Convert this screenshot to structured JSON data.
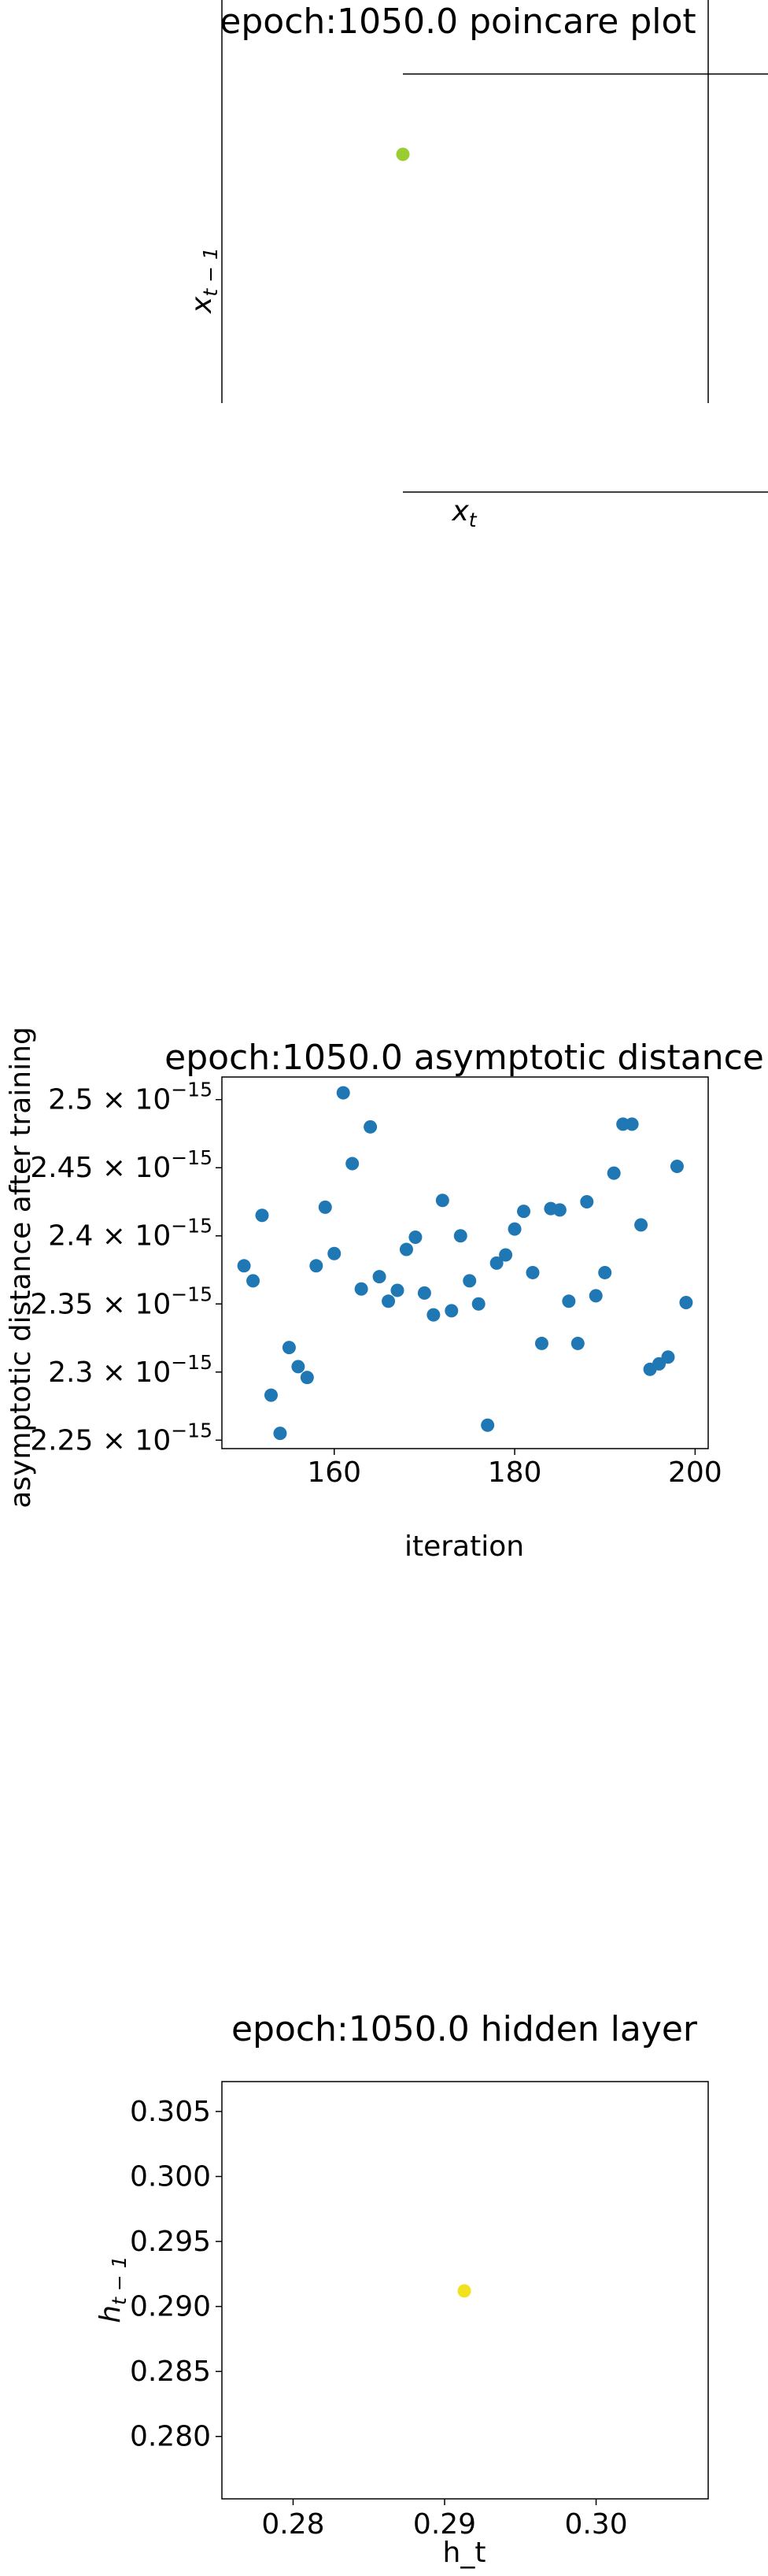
{
  "chart_data": [
    {
      "type": "scatter",
      "title": "epoch:1050.0 poincare plot",
      "xlabel": "x_t",
      "ylabel": "x_{t-1}",
      "axes_style": "spines moved to data position (centered)",
      "x_ticks": [],
      "y_ticks": [],
      "points": [
        {
          "x": 0,
          "y": 0
        }
      ],
      "color": "#9acd32",
      "grid": false
    },
    {
      "type": "scatter",
      "title": "epoch:1050.0 asymptotic distance",
      "xlabel": "iteration",
      "ylabel": "asymptotic distance after training",
      "xlim": [
        147.55,
        201.45
      ],
      "ylim": [
        2.2438e-15,
        2.5166e-15
      ],
      "x_ticks": [
        {
          "value": 160,
          "label": "160"
        },
        {
          "value": 180,
          "label": "180"
        },
        {
          "value": 200,
          "label": "200"
        }
      ],
      "y_ticks": [
        {
          "value": 2.25e-15,
          "mantissa": "2.25",
          "exponent": "-15"
        },
        {
          "value": 2.3e-15,
          "mantissa": "2.3",
          "exponent": "-15"
        },
        {
          "value": 2.35e-15,
          "mantissa": "2.35",
          "exponent": "-15"
        },
        {
          "value": 2.4e-15,
          "mantissa": "2.4",
          "exponent": "-15"
        },
        {
          "value": 2.45e-15,
          "mantissa": "2.45",
          "exponent": "-15"
        },
        {
          "value": 2.5e-15,
          "mantissa": "2.5",
          "exponent": "-15"
        }
      ],
      "x": [
        150,
        151,
        152,
        153,
        154,
        155,
        156,
        157,
        158,
        159,
        160,
        161,
        162,
        163,
        164,
        165,
        166,
        167,
        168,
        169,
        170,
        171,
        172,
        173,
        174,
        175,
        176,
        177,
        178,
        179,
        180,
        181,
        182,
        183,
        184,
        185,
        186,
        187,
        188,
        189,
        190,
        191,
        192,
        193,
        194,
        195,
        196,
        197,
        198,
        199
      ],
      "y": [
        2.378e-15,
        2.367e-15,
        2.415e-15,
        2.283e-15,
        2.255e-15,
        2.318e-15,
        2.304e-15,
        2.296e-15,
        2.378e-15,
        2.421e-15,
        2.387e-15,
        2.505e-15,
        2.453e-15,
        2.361e-15,
        2.48e-15,
        2.37e-15,
        2.352e-15,
        2.36e-15,
        2.39e-15,
        2.399e-15,
        2.358e-15,
        2.342e-15,
        2.426e-15,
        2.345e-15,
        2.4e-15,
        2.367e-15,
        2.35e-15,
        2.261e-15,
        2.38e-15,
        2.386e-15,
        2.405e-15,
        2.418e-15,
        2.373e-15,
        2.321e-15,
        2.42e-15,
        2.419e-15,
        2.352e-15,
        2.321e-15,
        2.425e-15,
        2.356e-15,
        2.373e-15,
        2.446e-15,
        2.482e-15,
        2.482e-15,
        2.408e-15,
        2.302e-15,
        2.306e-15,
        2.311e-15,
        2.451e-15,
        2.351e-15
      ],
      "color": "#1f77b4",
      "grid": false
    },
    {
      "type": "scatter",
      "title": "epoch:1050.0 hidden layer",
      "xlabel": "h_t",
      "ylabel": "h_{t-1}",
      "xlim": [
        0.2753,
        0.3074
      ],
      "ylim": [
        0.2752,
        0.3073
      ],
      "x_ticks": [
        {
          "value": 0.28,
          "label": "0.28"
        },
        {
          "value": 0.29,
          "label": "0.29"
        },
        {
          "value": 0.3,
          "label": "0.30"
        }
      ],
      "y_ticks": [
        {
          "value": 0.28,
          "label": "0.280"
        },
        {
          "value": 0.285,
          "label": "0.285"
        },
        {
          "value": 0.29,
          "label": "0.290"
        },
        {
          "value": 0.295,
          "label": "0.295"
        },
        {
          "value": 0.3,
          "label": "0.300"
        },
        {
          "value": 0.305,
          "label": "0.305"
        }
      ],
      "points": [
        {
          "x": 0.2913,
          "y": 0.2912
        }
      ],
      "color": "#f2e11f",
      "grid": false
    }
  ]
}
